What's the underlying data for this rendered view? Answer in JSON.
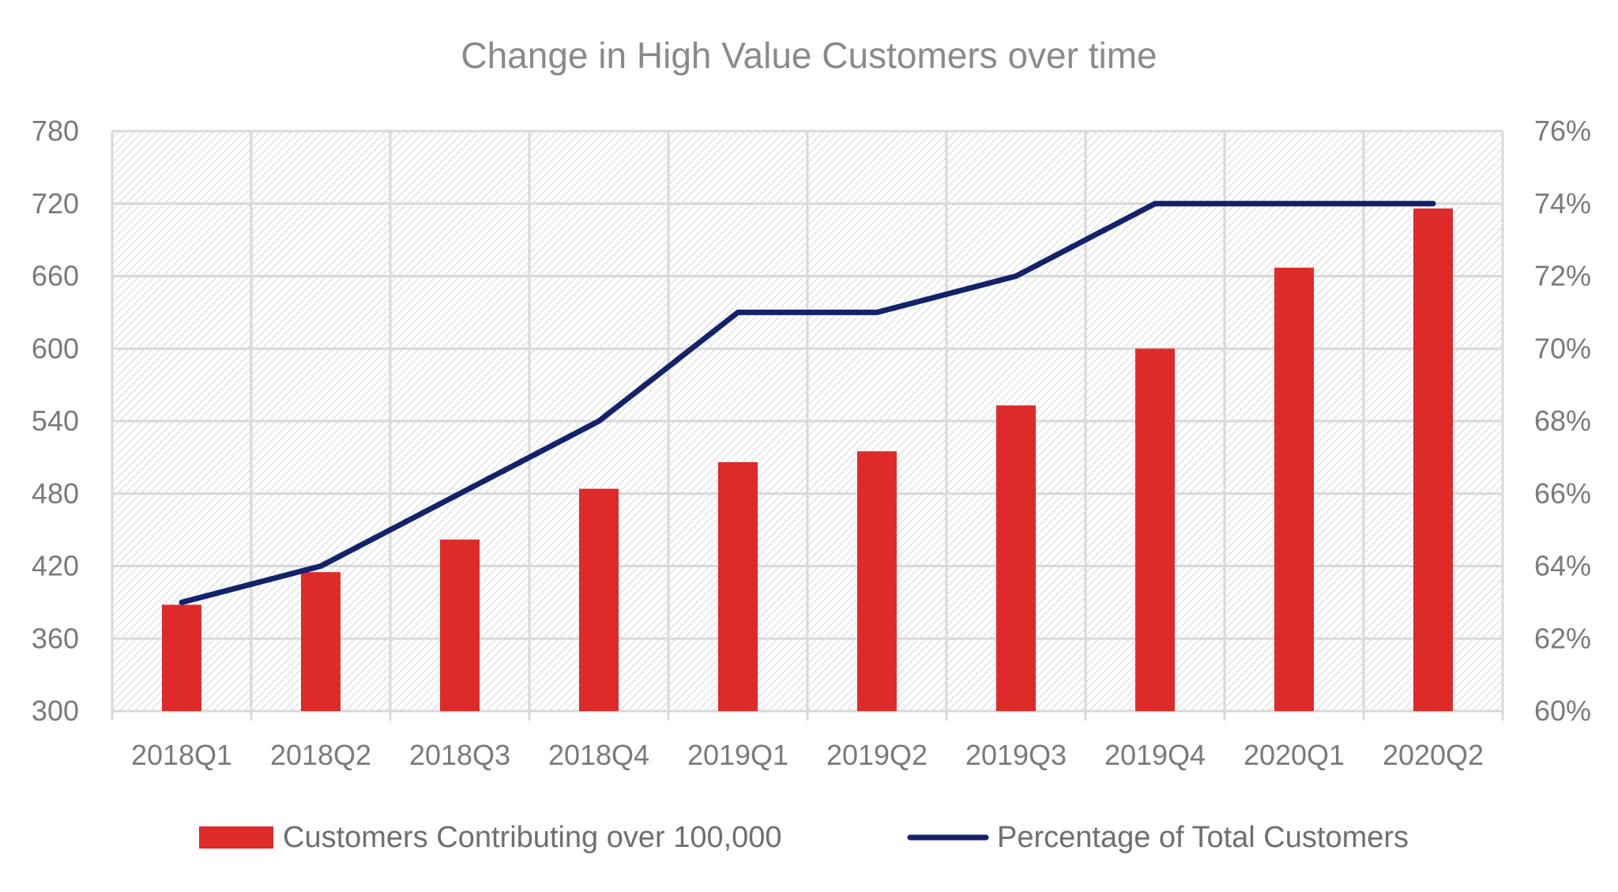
{
  "chart_data": {
    "type": "bar+line",
    "title": "Change in High Value Customers over time",
    "categories": [
      "2018Q1",
      "2018Q2",
      "2018Q3",
      "2018Q4",
      "2019Q1",
      "2019Q2",
      "2019Q3",
      "2019Q4",
      "2020Q1",
      "2020Q2"
    ],
    "series": [
      {
        "name": "Customers Contributing over 100,000",
        "type": "bar",
        "axis": "left",
        "values": [
          388,
          415,
          442,
          484,
          506,
          515,
          553,
          600,
          667,
          716
        ]
      },
      {
        "name": "Percentage of Total Customers",
        "type": "line",
        "axis": "right",
        "values": [
          0.63,
          0.64,
          0.66,
          0.68,
          0.71,
          0.71,
          0.72,
          0.74,
          0.74,
          0.74
        ]
      }
    ],
    "y_left": {
      "lim": [
        300,
        780
      ],
      "ticks": [
        300,
        360,
        420,
        480,
        540,
        600,
        660,
        720,
        780
      ],
      "tick_labels": [
        "300",
        "360",
        "420",
        "480",
        "540",
        "600",
        "660",
        "720",
        "780"
      ]
    },
    "y_right": {
      "lim": [
        0.6,
        0.76
      ],
      "ticks": [
        0.6,
        0.62,
        0.64,
        0.66,
        0.68,
        0.7,
        0.72,
        0.74,
        0.76
      ],
      "tick_labels": [
        "60%",
        "62%",
        "64%",
        "66%",
        "68%",
        "70%",
        "72%",
        "74%",
        "76%"
      ]
    },
    "grid": true,
    "legend_position": "bottom",
    "colors": {
      "bar": "#df2a2a",
      "line": "#13226a",
      "grid": "#d9d9d9",
      "hatch": "#e2e2e2"
    }
  }
}
